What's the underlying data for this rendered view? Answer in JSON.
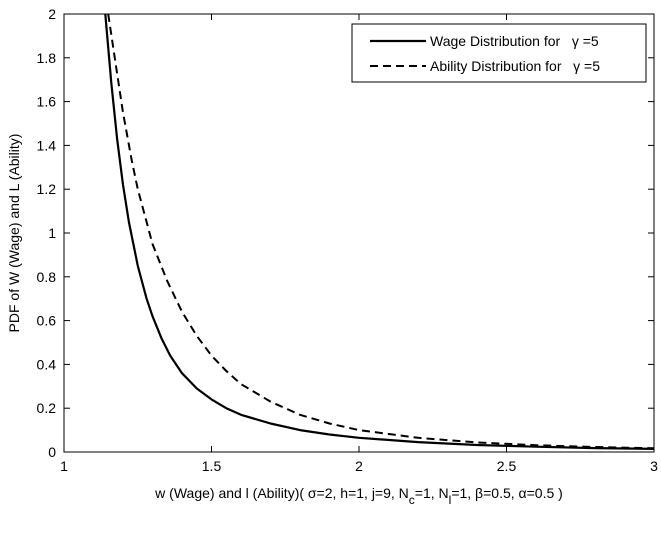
{
  "chart_data": {
    "type": "line",
    "xlabel": "w (Wage) and l (Ability)(   σ=2, h=1, j=9, N",
    "xlabel_sub_c": "c",
    "xlabel_mid": "=1, N",
    "xlabel_sub_l": "l",
    "xlabel_end": "=1,  β=0.5,  α=0.5 )",
    "ylabel": "PDF of W (Wage) and L (Ability)",
    "xlim": [
      1,
      3
    ],
    "ylim": [
      0,
      2
    ],
    "xticks": [
      1,
      1.5,
      2,
      2.5,
      3
    ],
    "xtick_labels": [
      "1",
      "1.5",
      "2",
      "2.5",
      "3"
    ],
    "yticks": [
      0,
      0.2,
      0.4,
      0.6,
      0.8,
      1,
      1.2,
      1.4,
      1.6,
      1.8,
      2
    ],
    "ytick_labels": [
      "0",
      "0.2",
      "0.4",
      "0.6",
      "0.8",
      "1",
      "1.2",
      "1.4",
      "1.6",
      "1.8",
      "2"
    ],
    "grid": false,
    "legend_position": "top-right",
    "series": [
      {
        "name": "Wage Distribution for   γ =5",
        "style": "solid",
        "color": "#000000",
        "x": [
          1.14,
          1.16,
          1.18,
          1.2,
          1.22,
          1.25,
          1.28,
          1.3,
          1.33,
          1.36,
          1.4,
          1.45,
          1.5,
          1.55,
          1.6,
          1.7,
          1.8,
          1.9,
          2.0,
          2.2,
          2.4,
          2.6,
          2.8,
          3.0
        ],
        "y": [
          2.0,
          1.69,
          1.43,
          1.22,
          1.05,
          0.85,
          0.7,
          0.62,
          0.52,
          0.44,
          0.36,
          0.29,
          0.24,
          0.2,
          0.17,
          0.13,
          0.1,
          0.08,
          0.065,
          0.045,
          0.032,
          0.024,
          0.018,
          0.014
        ]
      },
      {
        "name": "Ability Distribution for   γ =5",
        "style": "dashed",
        "color": "#000000",
        "x": [
          1.15,
          1.17,
          1.2,
          1.23,
          1.25,
          1.3,
          1.35,
          1.4,
          1.45,
          1.5,
          1.55,
          1.6,
          1.7,
          1.8,
          1.9,
          2.0,
          2.2,
          2.4,
          2.6,
          2.8,
          3.0
        ],
        "y": [
          2.0,
          1.82,
          1.55,
          1.33,
          1.2,
          0.95,
          0.78,
          0.64,
          0.53,
          0.44,
          0.37,
          0.31,
          0.23,
          0.17,
          0.13,
          0.1,
          0.065,
          0.044,
          0.031,
          0.023,
          0.017
        ]
      }
    ]
  }
}
